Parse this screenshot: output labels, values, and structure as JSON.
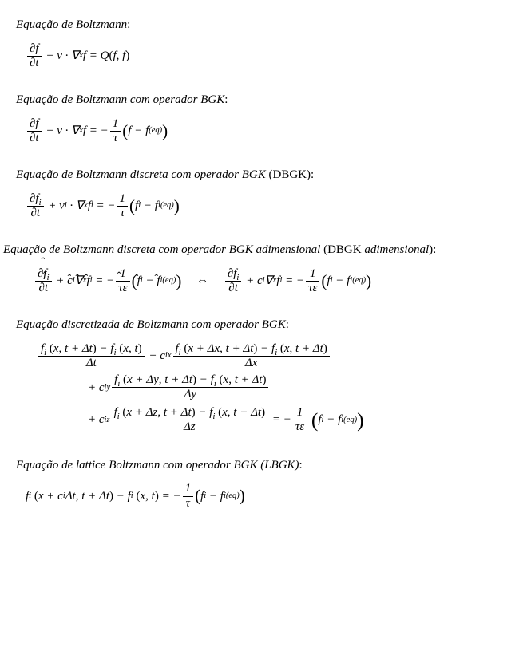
{
  "text_color": "#000000",
  "background_color": "#ffffff",
  "font_family": "Palatino Linotype, Book Antiqua, Palatino, Georgia, serif",
  "base_font_size_pt": 11,
  "sections": {
    "s1": {
      "title_it": "Equação de Boltzmann",
      "title_after": ":"
    },
    "s2": {
      "title_it": "Equação de Boltzmann com operador BGK",
      "title_after": ":"
    },
    "s3": {
      "title_it": "Equação de Boltzmann discreta com operador BGK",
      "title_after_roman": " (DBGK):"
    },
    "s4": {
      "title_it": "Equação de Boltzmann discreta com operador BGK adimensional",
      "title_after_roman_it": " (DBGK ",
      "title_after_it2": "adimensional",
      "title_after_roman2": "):"
    },
    "s5": {
      "title_it": "Equação discretizada de Boltzmann com operador BGK",
      "title_after": ":"
    },
    "s6": {
      "title_it": "Equação de lattice Boltzmann com operador BGK (LBGK)",
      "title_after": ":"
    }
  },
  "sym": {
    "partial": "∂",
    "nabla": "∇",
    "dot": "·",
    "minus": "−",
    "plus": "+",
    "eq": "=",
    "iff": "⇔",
    "hat": "ˆ",
    "Delta": "Δ",
    "tau": "τ",
    "eps": "ε",
    "lp": "(",
    "rp": ")",
    "lbp": "(",
    "rbp": ")",
    "comma": ","
  },
  "vars": {
    "f": "f",
    "t": "t",
    "v": "v",
    "x": "x",
    "Q": "Q",
    "eq": "(eq)",
    "i": "i",
    "c": "c",
    "y": "y",
    "z": "z",
    "one": "1"
  }
}
